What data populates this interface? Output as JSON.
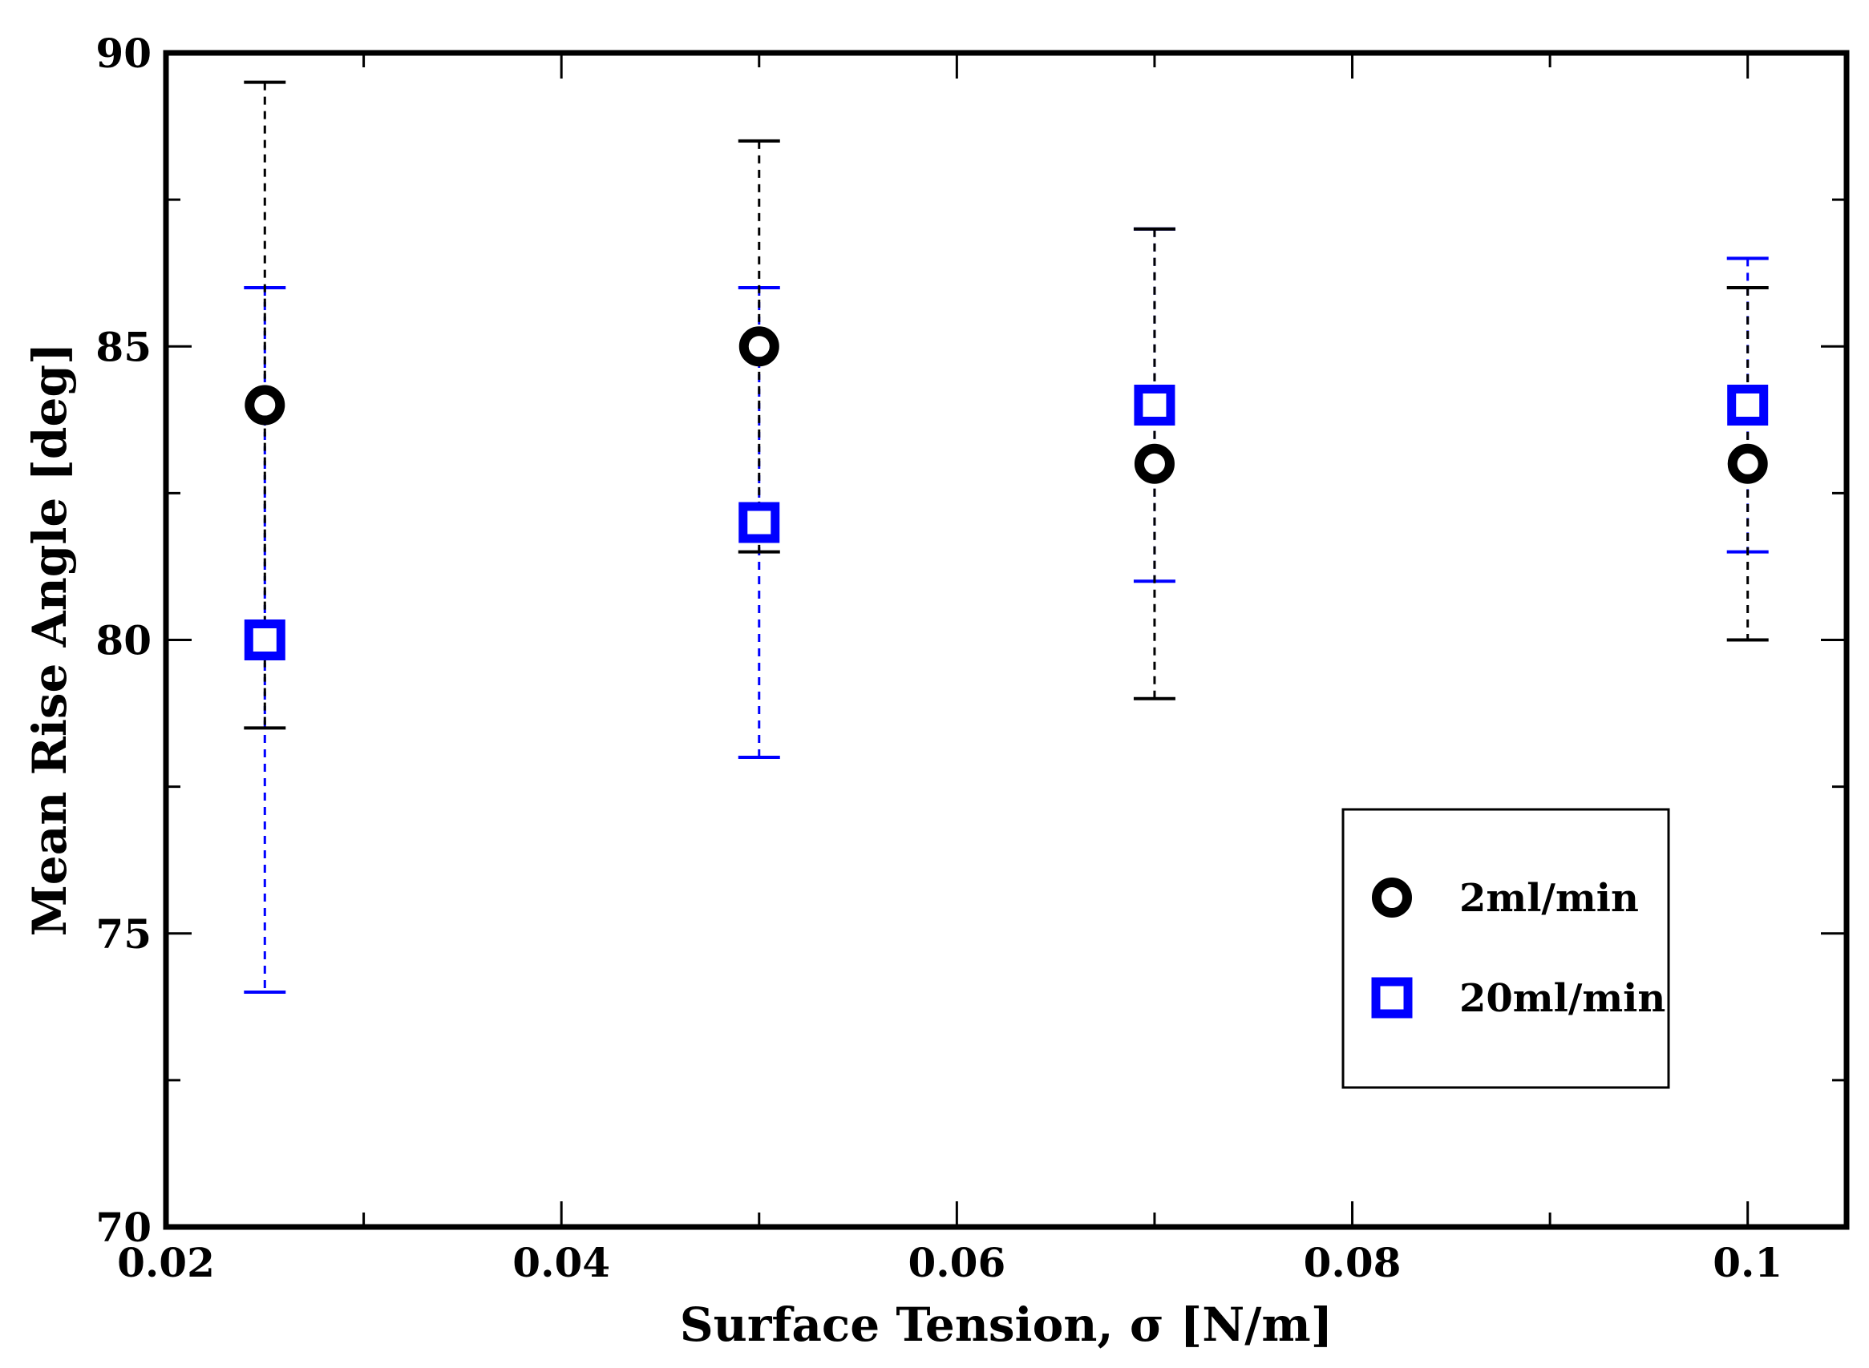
{
  "chart_data": {
    "type": "scatter",
    "title": "",
    "xlabel": "Surface Tension, σ [N/m]",
    "ylabel": "Mean Rise Angle [deg]",
    "xlim": [
      0.02,
      0.105
    ],
    "ylim": [
      70,
      90
    ],
    "xticks": [
      0.02,
      0.04,
      0.06,
      0.08,
      0.1
    ],
    "xtick_labels": [
      "0.02",
      "0.04",
      "0.06",
      "0.08",
      "0.1"
    ],
    "xminor": [
      0.03,
      0.05,
      0.07,
      0.09
    ],
    "yticks": [
      70,
      75,
      80,
      85,
      90
    ],
    "ytick_labels": [
      "70",
      "75",
      "80",
      "85",
      "90"
    ],
    "yminor": [
      72.5,
      77.5,
      82.5,
      87.5
    ],
    "grid": false,
    "legend_position": "bottom-right",
    "series": [
      {
        "name": "2ml/min",
        "marker": "circle",
        "color": "#000000",
        "x": [
          0.025,
          0.05,
          0.07,
          0.1
        ],
        "y": [
          84,
          85,
          83,
          83
        ],
        "yerr_low": [
          78.5,
          81.5,
          79,
          80
        ],
        "yerr_high": [
          89.5,
          88.5,
          87,
          86
        ]
      },
      {
        "name": "20ml/min",
        "marker": "square",
        "color": "#0000ff",
        "x": [
          0.025,
          0.05,
          0.07,
          0.1
        ],
        "y": [
          80,
          82,
          84,
          84
        ],
        "yerr_low": [
          74,
          78,
          81,
          81.5
        ],
        "yerr_high": [
          86,
          86,
          87,
          86.5
        ]
      }
    ]
  }
}
